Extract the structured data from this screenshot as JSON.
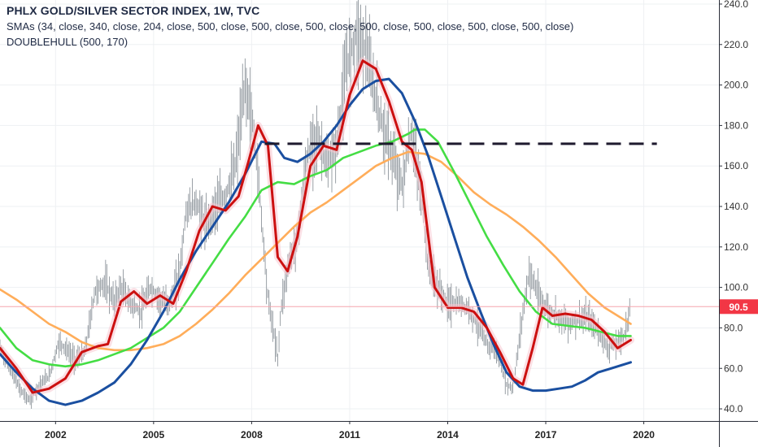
{
  "legend": {
    "title": "PHLX GOLD/SILVER SECTOR INDEX, 1W, TVC",
    "sma_line": "SMAs (34, close, 340, close, 204, close, 500, close, 500, close, 500, close, 500, close, 500, close, 500, close, 500, close)",
    "hull_line": "DOUBLEHULL (500, 170)"
  },
  "price_tag": {
    "label": "90.5",
    "value": 90.5,
    "color": "#f23645"
  },
  "colors": {
    "background": "#ffffff",
    "grid": "#eef0f3",
    "candle": "#9aa0a6",
    "axis_border": "#2a2e39",
    "sma34": "#cc1010",
    "sma204": "#44dd44",
    "sma340": "#ffad5a",
    "hull": "#1a4fa0",
    "hull_shadow": "#f7c6cf",
    "resistance": "#1e1a2e"
  },
  "chart_data": {
    "type": "line",
    "title": "PHLX GOLD/SILVER SECTOR INDEX, 1W, TVC",
    "xlabel": "",
    "ylabel": "",
    "xlim": [
      2000.3,
      2022.3
    ],
    "ylim": [
      34,
      242
    ],
    "x_ticks": [
      2002,
      2005,
      2008,
      2011,
      2014,
      2017,
      2020
    ],
    "y_ticks": [
      40.0,
      60.0,
      80.0,
      100.0,
      120.0,
      140.0,
      160.0,
      180.0,
      200.0,
      220.0,
      240.0
    ],
    "y_tick_labels": [
      "40.0",
      "60.0",
      "80.0",
      "100.0",
      "120.0",
      "140.0",
      "160.0",
      "180.0",
      "200.0",
      "220.0",
      "240.0"
    ],
    "x_tick_labels": [
      "2002",
      "2005",
      "2008",
      "2011",
      "2014",
      "2017",
      "2020"
    ],
    "last_price": 90.5,
    "resistance_level": 171,
    "resistance_from": 2008.4,
    "resistance_to": 2020.4,
    "series": [
      {
        "key": "price",
        "x": [
          2000.3,
          2000.6,
          2000.9,
          2001.2,
          2001.5,
          2001.8,
          2002.1,
          2002.3,
          2002.6,
          2002.9,
          2003.2,
          2003.5,
          2003.8,
          2004.0,
          2004.3,
          2004.6,
          2004.9,
          2005.2,
          2005.5,
          2005.8,
          2006.0,
          2006.3,
          2006.6,
          2006.9,
          2007.2,
          2007.5,
          2007.8,
          2008.0,
          2008.2,
          2008.5,
          2008.8,
          2008.9,
          2009.1,
          2009.4,
          2009.7,
          2010.0,
          2010.3,
          2010.6,
          2010.9,
          2011.2,
          2011.5,
          2011.7,
          2012.0,
          2012.3,
          2012.6,
          2012.9,
          2013.2,
          2013.4,
          2013.7,
          2014.0,
          2014.3,
          2014.6,
          2014.9,
          2015.2,
          2015.5,
          2015.8,
          2016.0,
          2016.3,
          2016.5,
          2016.8,
          2017.1,
          2017.4,
          2017.7,
          2018.0,
          2018.3,
          2018.6,
          2018.9,
          2019.1,
          2019.4,
          2019.6
        ],
        "values": [
          70,
          60,
          50,
          44,
          52,
          56,
          73,
          70,
          64,
          68,
          98,
          102,
          93,
          100,
          92,
          88,
          100,
          94,
          92,
          108,
          138,
          142,
          130,
          140,
          145,
          160,
          200,
          185,
          155,
          95,
          65,
          90,
          110,
          125,
          165,
          175,
          160,
          170,
          210,
          225,
          218,
          200,
          180,
          165,
          150,
          178,
          145,
          110,
          100,
          92,
          92,
          90,
          82,
          72,
          68,
          52,
          50,
          88,
          108,
          95,
          88,
          86,
          82,
          84,
          85,
          78,
          70,
          72,
          76,
          90
        ]
      },
      {
        "key": "sma34",
        "name": "SMA 34",
        "x": [
          2000.3,
          2000.8,
          2001.3,
          2001.8,
          2002.3,
          2002.8,
          2003.3,
          2003.6,
          2004.0,
          2004.4,
          2004.8,
          2005.2,
          2005.6,
          2006.0,
          2006.4,
          2006.8,
          2007.2,
          2007.6,
          2007.9,
          2008.2,
          2008.5,
          2008.8,
          2009.1,
          2009.4,
          2009.8,
          2010.2,
          2010.6,
          2011.0,
          2011.4,
          2011.8,
          2012.2,
          2012.6,
          2012.9,
          2013.2,
          2013.6,
          2014.0,
          2014.4,
          2014.8,
          2015.2,
          2015.6,
          2016.0,
          2016.3,
          2016.6,
          2016.9,
          2017.2,
          2017.6,
          2018.0,
          2018.4,
          2018.8,
          2019.2,
          2019.6
        ],
        "values": [
          70,
          60,
          48,
          50,
          55,
          68,
          71,
          72,
          93,
          98,
          92,
          96,
          92,
          108,
          128,
          140,
          138,
          145,
          162,
          180,
          170,
          115,
          108,
          125,
          160,
          170,
          168,
          195,
          212,
          208,
          192,
          172,
          168,
          152,
          100,
          90,
          90,
          88,
          80,
          68,
          55,
          52,
          70,
          90,
          86,
          87,
          86,
          84,
          78,
          70,
          74
        ]
      },
      {
        "key": "sma204",
        "name": "SMA 204",
        "x": [
          2000.3,
          2000.8,
          2001.3,
          2001.8,
          2002.3,
          2002.8,
          2003.3,
          2003.8,
          2004.3,
          2004.8,
          2005.3,
          2005.8,
          2006.3,
          2006.8,
          2007.3,
          2007.8,
          2008.3,
          2008.8,
          2009.3,
          2009.8,
          2010.3,
          2010.8,
          2011.3,
          2011.8,
          2012.3,
          2012.8,
          2013.0,
          2013.3,
          2013.7,
          2014.2,
          2014.7,
          2015.2,
          2015.7,
          2016.2,
          2016.7,
          2017.2,
          2017.7,
          2018.2,
          2018.7,
          2019.2,
          2019.6
        ],
        "values": [
          80,
          70,
          64,
          62,
          61,
          62,
          64,
          67,
          70,
          75,
          80,
          88,
          100,
          112,
          124,
          135,
          148,
          152,
          151,
          155,
          158,
          164,
          167,
          170,
          172,
          176,
          178,
          178,
          172,
          157,
          141,
          125,
          111,
          98,
          88,
          82,
          81,
          80,
          78,
          76,
          76
        ]
      },
      {
        "key": "sma340",
        "name": "SMA 340",
        "x": [
          2000.3,
          2000.8,
          2001.3,
          2001.8,
          2002.3,
          2002.8,
          2003.3,
          2003.8,
          2004.3,
          2004.8,
          2005.3,
          2005.8,
          2006.3,
          2006.8,
          2007.3,
          2007.8,
          2008.3,
          2008.8,
          2009.3,
          2009.8,
          2010.3,
          2010.8,
          2011.3,
          2011.8,
          2012.3,
          2012.8,
          2013.3,
          2013.8,
          2014.3,
          2014.8,
          2015.3,
          2015.8,
          2016.3,
          2016.8,
          2017.3,
          2017.8,
          2018.3,
          2018.8,
          2019.3,
          2019.6
        ],
        "values": [
          99,
          94,
          88,
          82,
          78,
          73,
          70,
          69,
          69,
          70,
          72,
          76,
          82,
          89,
          97,
          106,
          114,
          122,
          130,
          137,
          142,
          148,
          154,
          160,
          164,
          167,
          166,
          162,
          155,
          147,
          141,
          136,
          130,
          123,
          115,
          106,
          97,
          90,
          85,
          82
        ]
      },
      {
        "key": "hull",
        "name": "DOUBLEHULL 500",
        "x": [
          2000.3,
          2000.8,
          2001.3,
          2001.8,
          2002.3,
          2002.8,
          2003.3,
          2003.8,
          2004.3,
          2004.8,
          2005.3,
          2005.8,
          2006.3,
          2006.8,
          2007.3,
          2007.8,
          2008.3,
          2008.7,
          2009.0,
          2009.4,
          2009.8,
          2010.2,
          2010.6,
          2011.0,
          2011.4,
          2011.8,
          2012.2,
          2012.6,
          2013.0,
          2013.4,
          2013.8,
          2014.2,
          2014.6,
          2015.0,
          2015.4,
          2015.8,
          2016.2,
          2016.6,
          2017.0,
          2017.4,
          2017.8,
          2018.2,
          2018.6,
          2019.0,
          2019.4,
          2019.6
        ],
        "values": [
          67,
          58,
          50,
          44,
          42,
          44,
          48,
          53,
          62,
          74,
          88,
          104,
          118,
          130,
          142,
          156,
          172,
          171,
          164,
          162,
          166,
          172,
          180,
          190,
          198,
          202,
          203,
          196,
          182,
          165,
          145,
          125,
          105,
          88,
          72,
          58,
          51,
          49,
          49,
          50,
          51,
          54,
          58,
          60,
          62,
          63
        ]
      }
    ]
  }
}
